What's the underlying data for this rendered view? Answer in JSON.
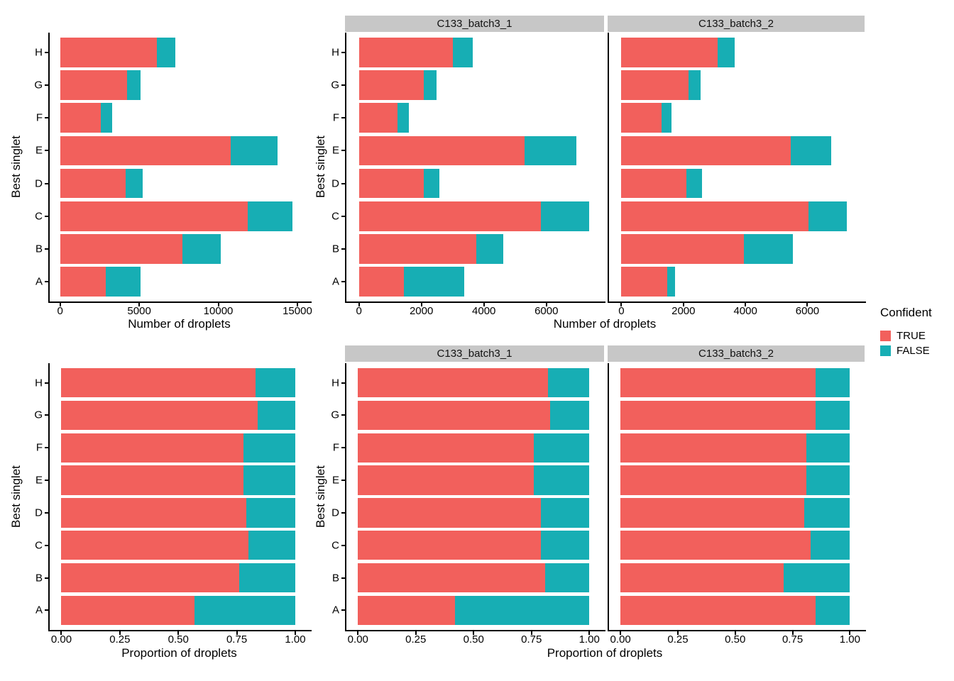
{
  "colors": {
    "true_fill": "#F2605C",
    "false_fill": "#17AEB4",
    "strip_bg": "#C7C7C7",
    "axis": "#000000"
  },
  "legend": {
    "title": "Confident",
    "items": [
      {
        "label": "TRUE",
        "swatch": "true_fill"
      },
      {
        "label": "FALSE",
        "swatch": "false_fill"
      }
    ]
  },
  "chart_data": [
    {
      "id": "number_of_droplets",
      "type": "bar",
      "orientation": "horizontal",
      "stacked": true,
      "xlabel": "Number of droplets",
      "ylabel": "Best singlet",
      "legend_title": "Confident",
      "categories": [
        "A",
        "B",
        "C",
        "D",
        "E",
        "F",
        "G",
        "H"
      ],
      "panels": [
        {
          "facet": null,
          "axis_range": [
            -660,
            15900
          ],
          "x_ticks": [
            0,
            5000,
            10000,
            15000
          ],
          "x_tick_labels": [
            "0",
            "5000",
            "10000",
            "15000"
          ],
          "series": [
            {
              "name": "TRUE",
              "values": [
                2900,
                7710,
                11880,
                4130,
                10800,
                2550,
                4250,
                6100
              ]
            },
            {
              "name": "FALSE",
              "values": [
                2200,
                2450,
                2820,
                1070,
                2950,
                720,
                850,
                1200
              ]
            }
          ]
        },
        {
          "facet": "C133_batch3_1",
          "axis_range": [
            -400,
            7890
          ],
          "x_ticks": [
            0,
            2000,
            4000,
            6000
          ],
          "x_tick_labels": [
            "0",
            "2000",
            "4000",
            "6000"
          ],
          "series": [
            {
              "name": "TRUE",
              "values": [
                1430,
                3760,
                5830,
                2070,
                5300,
                1230,
                2070,
                3000
              ]
            },
            {
              "name": "FALSE",
              "values": [
                1950,
                860,
                1540,
                510,
                1660,
                380,
                410,
                650
              ]
            }
          ]
        },
        {
          "facet": "C133_batch3_2",
          "axis_range": [
            -400,
            7890
          ],
          "x_ticks": [
            0,
            2000,
            4000,
            6000
          ],
          "x_tick_labels": [
            "0",
            "2000",
            "4000",
            "6000"
          ],
          "series": [
            {
              "name": "TRUE",
              "values": [
                1470,
                3940,
                6030,
                2090,
                5460,
                1300,
                2170,
                3100
              ]
            },
            {
              "name": "FALSE",
              "values": [
                250,
                1590,
                1250,
                520,
                1310,
                320,
                380,
                560
              ]
            }
          ]
        }
      ]
    },
    {
      "id": "proportion_of_droplets",
      "type": "bar",
      "orientation": "horizontal",
      "stacked": true,
      "xlabel": "Proportion of droplets",
      "ylabel": "Best singlet",
      "legend_title": "Confident",
      "categories": [
        "A",
        "B",
        "C",
        "D",
        "E",
        "F",
        "G",
        "H"
      ],
      "panels": [
        {
          "facet": null,
          "axis_range": [
            -0.05,
            1.07
          ],
          "x_ticks": [
            0,
            0.25,
            0.5,
            0.75,
            1
          ],
          "x_tick_labels": [
            "0.00",
            "0.25",
            "0.50",
            "0.75",
            "1.00"
          ],
          "series": [
            {
              "name": "TRUE",
              "values": [
                0.57,
                0.76,
                0.8,
                0.79,
                0.78,
                0.78,
                0.84,
                0.83
              ]
            },
            {
              "name": "FALSE",
              "values": [
                0.43,
                0.24,
                0.2,
                0.21,
                0.22,
                0.22,
                0.16,
                0.17
              ]
            }
          ]
        },
        {
          "facet": "C133_batch3_1",
          "axis_range": [
            -0.05,
            1.07
          ],
          "x_ticks": [
            0,
            0.25,
            0.5,
            0.75,
            1
          ],
          "x_tick_labels": [
            "0.00",
            "0.25",
            "0.50",
            "0.75",
            "1.00"
          ],
          "series": [
            {
              "name": "TRUE",
              "values": [
                0.42,
                0.81,
                0.79,
                0.79,
                0.76,
                0.76,
                0.83,
                0.82
              ]
            },
            {
              "name": "FALSE",
              "values": [
                0.58,
                0.19,
                0.21,
                0.21,
                0.24,
                0.24,
                0.17,
                0.18
              ]
            }
          ]
        },
        {
          "facet": "C133_batch3_2",
          "axis_range": [
            -0.05,
            1.07
          ],
          "x_ticks": [
            0,
            0.25,
            0.5,
            0.75,
            1
          ],
          "x_tick_labels": [
            "0.00",
            "0.25",
            "0.50",
            "0.75",
            "1.00"
          ],
          "series": [
            {
              "name": "TRUE",
              "values": [
                0.85,
                0.71,
                0.83,
                0.8,
                0.81,
                0.81,
                0.85,
                0.85
              ]
            },
            {
              "name": "FALSE",
              "values": [
                0.15,
                0.29,
                0.17,
                0.2,
                0.19,
                0.19,
                0.15,
                0.15
              ]
            }
          ]
        }
      ]
    }
  ]
}
